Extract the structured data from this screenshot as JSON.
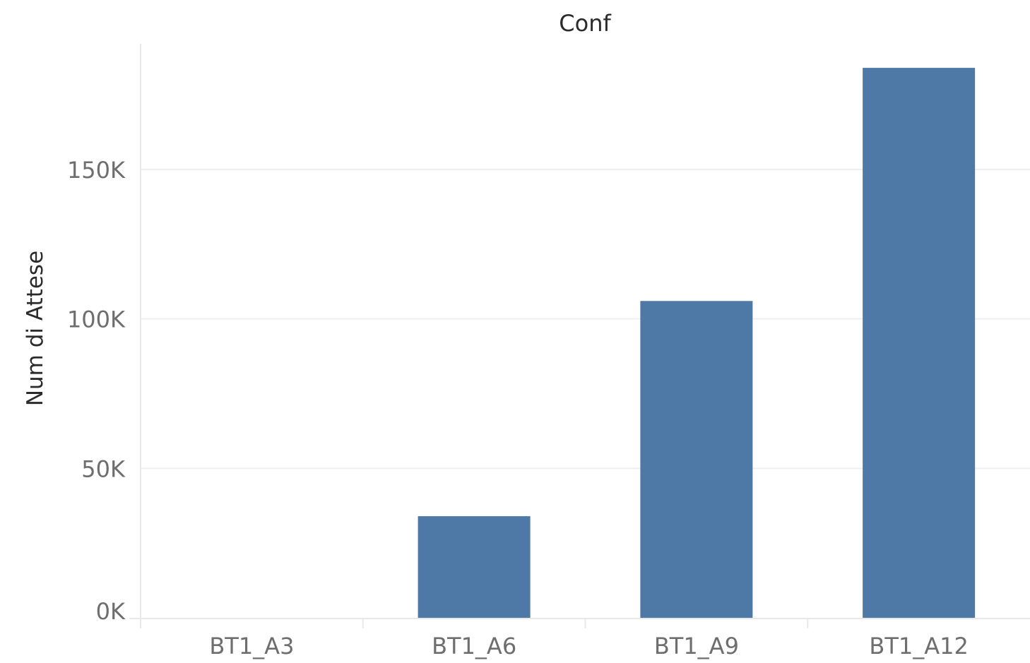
{
  "chart_data": {
    "type": "bar",
    "title": "Conf",
    "xlabel": "",
    "ylabel": "Num di Attese",
    "categories": [
      "BT1_A3",
      "BT1_A6",
      "BT1_A9",
      "BT1_A12"
    ],
    "values": [
      0,
      34000,
      106000,
      184000
    ],
    "ylim": [
      0,
      190000
    ],
    "yticks": [
      0,
      50000,
      100000,
      150000
    ],
    "ytick_labels": [
      "0K",
      "50K",
      "100K",
      "150K"
    ],
    "grid": true,
    "bar_color": "#4e79a7"
  }
}
